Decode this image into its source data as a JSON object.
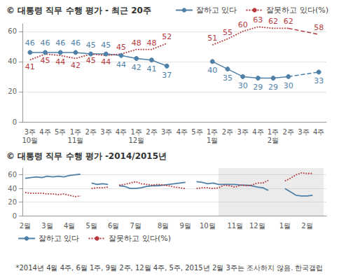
{
  "chart_data": [
    {
      "type": "line",
      "title": "© 대통령 직무 수행 평가 - 최근 20주",
      "categories": [
        "3주\n10월",
        "4주",
        "5주",
        "1주\n11월",
        "2주",
        "3주",
        "4주",
        "1주\n12월",
        "2주",
        "3주",
        "4주",
        "5주",
        "1주\n1월",
        "2주",
        "3주",
        "4주",
        "1주\n2월",
        "2주",
        "3주",
        "4주"
      ],
      "series": [
        {
          "name": "잘하고 있다",
          "color": "#4f81a8",
          "marker": "circle",
          "line_style": "solid",
          "values": [
            46,
            46,
            46,
            46,
            45,
            45,
            44,
            42,
            41,
            37,
            null,
            null,
            40,
            35,
            30,
            29,
            29,
            30,
            null,
            33
          ]
        },
        {
          "name": "잘못하고 있다(%)",
          "color": "#b5393d",
          "marker": "none",
          "line_style": "dotted",
          "values": [
            41,
            45,
            44,
            42,
            45,
            44,
            45,
            48,
            48,
            52,
            null,
            null,
            51,
            55,
            60,
            63,
            62,
            62,
            null,
            58
          ]
        }
      ],
      "ylim": [
        0,
        65
      ],
      "yticks": [
        0,
        20,
        40,
        60
      ],
      "grid": true,
      "legend": "top-right",
      "data_labels": true
    },
    {
      "type": "line",
      "title": "© 대통령 직무 수행 평가 -2014/2015년",
      "categories": [
        "2월",
        null,
        null,
        null,
        "3월",
        null,
        null,
        null,
        "4월",
        null,
        null,
        null,
        "5월",
        null,
        null,
        null,
        "6월",
        null,
        null,
        null,
        "7월",
        null,
        null,
        null,
        null,
        "8월",
        null,
        null,
        null,
        "9월",
        null,
        null,
        null,
        "10월",
        null,
        null,
        null,
        null,
        "11월",
        null,
        null,
        null,
        "12월",
        null,
        null,
        null,
        null,
        "1월",
        null,
        null,
        null,
        "2월",
        null,
        null,
        null
      ],
      "series": [
        {
          "name": "잘하고 있다",
          "color": "#4f81a8",
          "marker": "none",
          "line_style": "solid",
          "values": [
            55,
            56,
            57,
            56,
            58,
            57,
            58,
            57,
            59,
            60,
            61,
            null,
            48,
            46,
            47,
            46,
            null,
            44,
            43,
            40,
            40,
            41,
            43,
            44,
            44,
            45,
            46,
            47,
            48,
            49,
            null,
            50,
            49,
            47,
            48,
            46,
            46,
            46,
            46,
            45,
            45,
            44,
            42,
            41,
            37,
            null,
            null,
            40,
            35,
            30,
            29,
            29,
            30,
            null,
            33
          ]
        },
        {
          "name": "잘못하고 있다(%)",
          "color": "#b5393d",
          "marker": "none",
          "line_style": "dotted",
          "values": [
            34,
            33,
            33,
            33,
            32,
            32,
            31,
            32,
            30,
            28,
            29,
            null,
            40,
            41,
            41,
            42,
            null,
            45,
            46,
            48,
            50,
            47,
            46,
            45,
            46,
            45,
            44,
            42,
            41,
            40,
            null,
            40,
            41,
            41,
            40,
            41,
            45,
            44,
            42,
            45,
            44,
            45,
            48,
            48,
            52,
            null,
            null,
            51,
            55,
            60,
            63,
            62,
            62,
            null,
            58
          ]
        }
      ],
      "ylim": [
        0,
        70
      ],
      "yticks": [
        0,
        20,
        40,
        60
      ],
      "grid": true,
      "legend": "bottom-left",
      "data_labels": false,
      "annotation": "*2014년 4월 4주, 6월 1주, 9월 2주, 12월 4주, 5주, 2015년 2월 3주는 조사하지 않음. 한국갤럽"
    }
  ]
}
